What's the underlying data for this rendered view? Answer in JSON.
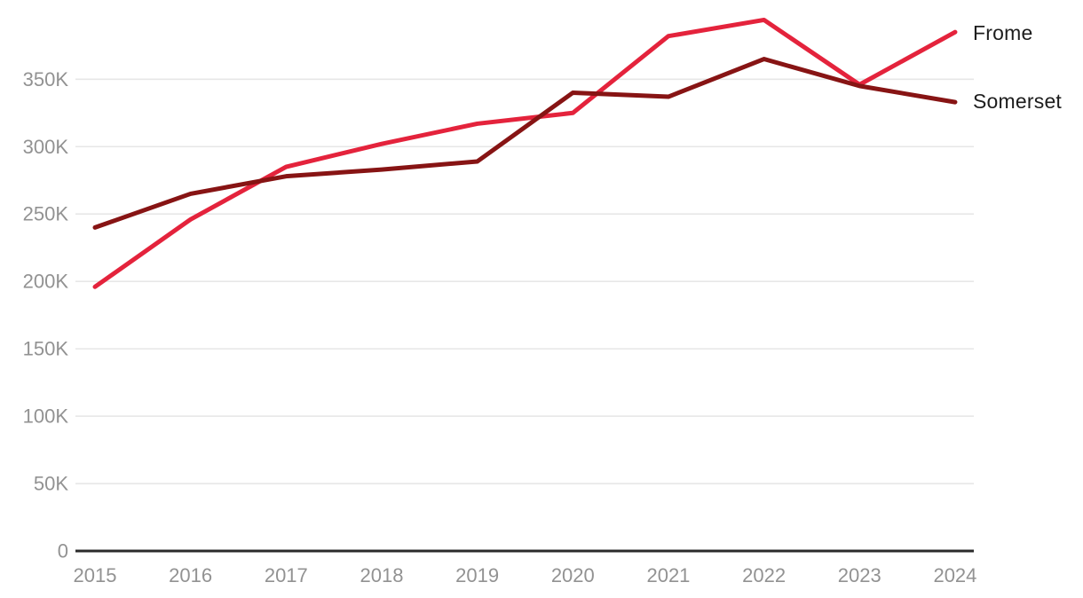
{
  "chart_data": {
    "type": "line",
    "title": "",
    "xlabel": "",
    "ylabel": "",
    "categories": [
      "2015",
      "2016",
      "2017",
      "2018",
      "2019",
      "2020",
      "2021",
      "2022",
      "2023",
      "2024"
    ],
    "series": [
      {
        "name": "Frome",
        "color": "#e4233c",
        "values": [
          196000,
          246000,
          285000,
          302000,
          317000,
          325000,
          382000,
          394000,
          346000,
          385000
        ]
      },
      {
        "name": "Somerset",
        "color": "#871414",
        "values": [
          240000,
          265000,
          278000,
          283000,
          289000,
          340000,
          337000,
          365000,
          345000,
          333000
        ]
      }
    ],
    "ylim": [
      0,
      397000
    ],
    "yticks": [
      {
        "value": 0,
        "label": "0"
      },
      {
        "value": 50000,
        "label": "50K"
      },
      {
        "value": 100000,
        "label": "100K"
      },
      {
        "value": 150000,
        "label": "150K"
      },
      {
        "value": 200000,
        "label": "200K"
      },
      {
        "value": 250000,
        "label": "250K"
      },
      {
        "value": 300000,
        "label": "300K"
      },
      {
        "value": 350000,
        "label": "350K"
      }
    ],
    "grid": "horizontal",
    "legend_position": "line-end-labels-right"
  },
  "colors": {
    "background": "#ffffff",
    "gridline": "#e7e7e7",
    "axis_line": "#2b2b2b",
    "tick_text": "#929292",
    "series_label_text": "#1d1d1d"
  }
}
